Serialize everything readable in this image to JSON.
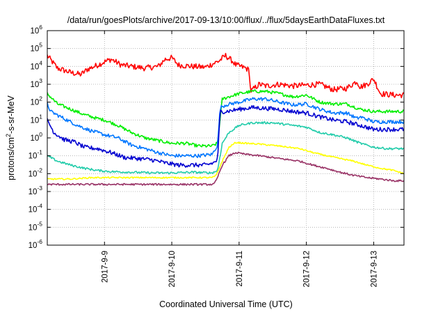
{
  "chart_data": {
    "type": "line",
    "title": "/data/run/goesPlots/archive/2017-09-13/10:00/flux/../flux/5daysEarthDataFluxes.txt",
    "xlabel": "Coordinated Universal Time (UTC)",
    "ylabel": {
      "base": "protons/cm",
      "sup": "2",
      "rest": "-s-sr-MeV"
    },
    "xlim": [
      -0.85,
      4.45
    ],
    "ylim_log10": [
      -6,
      6
    ],
    "x_unit": "days since 2017-9-9 00:00 UTC",
    "x_ticks": [
      {
        "x": 0,
        "label": "2017-9-9"
      },
      {
        "x": 1,
        "label": "2017-9-10"
      },
      {
        "x": 2,
        "label": "2017-9-11"
      },
      {
        "x": 3,
        "label": "2017-9-12"
      },
      {
        "x": 4,
        "label": "2017-9-13"
      }
    ],
    "y_ticks": [
      {
        "exp": 6,
        "label": "10",
        "sup": "6"
      },
      {
        "exp": 5,
        "label": "10",
        "sup": "5"
      },
      {
        "exp": 4,
        "label": "10",
        "sup": "4"
      },
      {
        "exp": 3,
        "label": "10",
        "sup": "3"
      },
      {
        "exp": 2,
        "label": "10",
        "sup": "2"
      },
      {
        "exp": 1,
        "label": "10",
        "sup": "1"
      },
      {
        "exp": 0,
        "label": "10",
        "sup": "0"
      },
      {
        "exp": -1,
        "label": "10",
        "sup": "-1"
      },
      {
        "exp": -2,
        "label": "10",
        "sup": "-2"
      },
      {
        "exp": -3,
        "label": "10",
        "sup": "-3"
      },
      {
        "exp": -4,
        "label": "10",
        "sup": "-4"
      },
      {
        "exp": -5,
        "label": "10",
        "sup": "-5"
      },
      {
        "exp": -6,
        "label": "10",
        "sup": "-6"
      }
    ],
    "grid": true,
    "series": [
      {
        "color": "#ff0000",
        "noise": 0.16,
        "x": [
          -0.85,
          -0.7,
          -0.5,
          -0.35,
          -0.25,
          -0.1,
          0.0,
          0.1,
          0.25,
          0.4,
          0.6,
          0.8,
          0.9,
          1.0,
          1.1,
          1.3,
          1.5,
          1.7,
          1.8,
          1.9,
          1.95,
          2.1,
          2.15,
          2.17,
          2.3,
          2.4,
          2.6,
          2.8,
          3.0,
          3.2,
          3.4,
          3.6,
          3.75,
          3.8,
          3.9,
          4.0,
          4.1,
          4.3,
          4.45
        ],
        "y": [
          40000,
          8000,
          4500,
          3500,
          7000,
          12000,
          18000,
          25000,
          12000,
          10000,
          8000,
          10000,
          25000,
          30000,
          12000,
          10000,
          9000,
          20000,
          40000,
          20000,
          12000,
          8000,
          6000,
          400,
          1000,
          800,
          1000,
          800,
          900,
          1000,
          500,
          600,
          1500,
          700,
          1000,
          2000,
          300,
          250,
          250
        ]
      },
      {
        "color": "#00ee00",
        "noise": 0.09,
        "x": [
          -0.85,
          -0.7,
          -0.5,
          -0.3,
          -0.1,
          0.0,
          0.2,
          0.4,
          0.6,
          0.8,
          1.0,
          1.2,
          1.4,
          1.6,
          1.68,
          1.75,
          1.85,
          2.0,
          2.2,
          2.4,
          2.6,
          2.8,
          3.0,
          3.2,
          3.4,
          3.6,
          3.8,
          4.0,
          4.2,
          4.45
        ],
        "y": [
          300,
          80,
          40,
          20,
          12,
          10,
          5,
          2,
          1,
          0.7,
          0.5,
          0.5,
          0.35,
          0.35,
          0.5,
          150,
          200,
          300,
          400,
          400,
          300,
          200,
          250,
          100,
          80,
          80,
          40,
          30,
          30,
          30
        ]
      },
      {
        "color": "#0077ff",
        "noise": 0.1,
        "x": [
          -0.85,
          -0.8,
          -0.6,
          -0.4,
          -0.2,
          0.0,
          0.2,
          0.4,
          0.6,
          0.8,
          1.0,
          1.2,
          1.4,
          1.6,
          1.68,
          1.72,
          1.8,
          2.0,
          2.2,
          2.4,
          2.6,
          2.8,
          3.0,
          3.2,
          3.4,
          3.6,
          3.75,
          3.8,
          4.0,
          4.2,
          4.45
        ],
        "y": [
          80,
          30,
          12,
          5,
          2.5,
          1.5,
          1,
          0.4,
          0.25,
          0.15,
          0.1,
          0.1,
          0.1,
          0.12,
          0.4,
          50,
          70,
          100,
          150,
          150,
          100,
          70,
          80,
          40,
          25,
          25,
          12,
          15,
          8,
          8,
          8
        ]
      },
      {
        "color": "#0000d0",
        "noise": 0.12,
        "x": [
          -0.85,
          -0.75,
          -0.6,
          -0.45,
          -0.3,
          -0.1,
          0.1,
          0.3,
          0.5,
          0.7,
          0.9,
          1.1,
          1.3,
          1.5,
          1.62,
          1.68,
          1.72,
          1.8,
          2.0,
          2.2,
          2.4,
          2.6,
          2.8,
          3.0,
          3.2,
          3.4,
          3.6,
          3.8,
          4.0,
          4.2,
          4.45
        ],
        "y": [
          10,
          2,
          0.8,
          0.6,
          0.3,
          0.25,
          0.15,
          0.08,
          0.07,
          0.06,
          0.04,
          0.03,
          0.03,
          0.03,
          0.04,
          0.06,
          30,
          30,
          40,
          50,
          45,
          40,
          30,
          25,
          15,
          10,
          8,
          5,
          3,
          3,
          3
        ]
      },
      {
        "color": "#22ccaa",
        "noise": 0.06,
        "x": [
          -0.85,
          -0.7,
          -0.5,
          -0.3,
          -0.1,
          0.1,
          0.4,
          0.7,
          1.0,
          1.3,
          1.6,
          1.68,
          1.75,
          1.85,
          2.0,
          2.2,
          2.5,
          2.8,
          3.0,
          3.2,
          3.4,
          3.6,
          3.8,
          4.0,
          4.2,
          4.45
        ],
        "y": [
          0.1,
          0.05,
          0.03,
          0.02,
          0.015,
          0.013,
          0.012,
          0.011,
          0.011,
          0.012,
          0.011,
          0.015,
          0.5,
          2,
          5,
          7,
          7,
          5,
          4,
          2,
          1.5,
          1,
          0.5,
          0.3,
          0.25,
          0.25
        ]
      },
      {
        "color": "#ffff00",
        "noise": 0.04,
        "x": [
          -0.85,
          -0.5,
          -0.2,
          0.2,
          0.6,
          1.0,
          1.3,
          1.6,
          1.66,
          1.75,
          1.85,
          1.95,
          2.1,
          2.3,
          2.6,
          2.9,
          3.1,
          3.3,
          3.5,
          3.7,
          3.9,
          4.1,
          4.3,
          4.45
        ],
        "y": [
          0.005,
          0.005,
          0.006,
          0.006,
          0.006,
          0.006,
          0.006,
          0.006,
          0.008,
          0.05,
          0.3,
          0.55,
          0.5,
          0.45,
          0.35,
          0.25,
          0.15,
          0.1,
          0.07,
          0.05,
          0.03,
          0.02,
          0.015,
          0.01
        ]
      },
      {
        "color": "#993366",
        "noise": 0.05,
        "x": [
          -0.85,
          -0.5,
          -0.2,
          0.2,
          0.6,
          1.0,
          1.3,
          1.62,
          1.66,
          1.75,
          1.85,
          1.95,
          2.1,
          2.3,
          2.6,
          2.9,
          3.1,
          3.3,
          3.5,
          3.7,
          3.9,
          4.1,
          4.3,
          4.45
        ],
        "y": [
          0.0025,
          0.0025,
          0.0025,
          0.0025,
          0.0025,
          0.0025,
          0.0025,
          0.0025,
          0.004,
          0.03,
          0.1,
          0.15,
          0.12,
          0.1,
          0.07,
          0.05,
          0.03,
          0.02,
          0.012,
          0.008,
          0.006,
          0.005,
          0.004,
          0.004
        ]
      }
    ]
  }
}
